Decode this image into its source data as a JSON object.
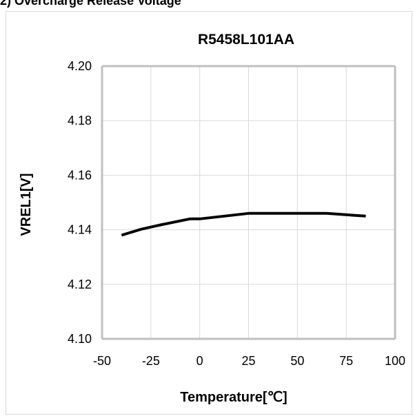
{
  "heading": "2) Overcharge Release Voltage",
  "chart_data": {
    "type": "line",
    "title": "R5458L101AA",
    "xlabel": "Temperature[℃]",
    "ylabel": "VREL1[V]",
    "xlim": [
      -50,
      100
    ],
    "ylim": [
      4.1,
      4.2
    ],
    "xticks": [
      -50,
      -25,
      0,
      25,
      50,
      75,
      100
    ],
    "xtick_labels": [
      "-50",
      "-25",
      "0",
      "25",
      "50",
      "75",
      "100"
    ],
    "yticks": [
      4.1,
      4.12,
      4.14,
      4.16,
      4.18,
      4.2
    ],
    "ytick_labels": [
      "4.10",
      "4.12",
      "4.14",
      "4.16",
      "4.18",
      "4.20"
    ],
    "grid": true,
    "legend": "none",
    "series": [
      {
        "color": "#000000",
        "x": [
          -40,
          -30,
          -20,
          -5,
          0,
          25,
          45,
          65,
          85
        ],
        "y": [
          4.138,
          4.1402,
          4.1418,
          4.144,
          4.144,
          4.146,
          4.146,
          4.146,
          4.145
        ]
      }
    ],
    "colors": {
      "grid": "#d9d9d9",
      "axis": "#bfbfbf",
      "line": "#000000"
    }
  }
}
